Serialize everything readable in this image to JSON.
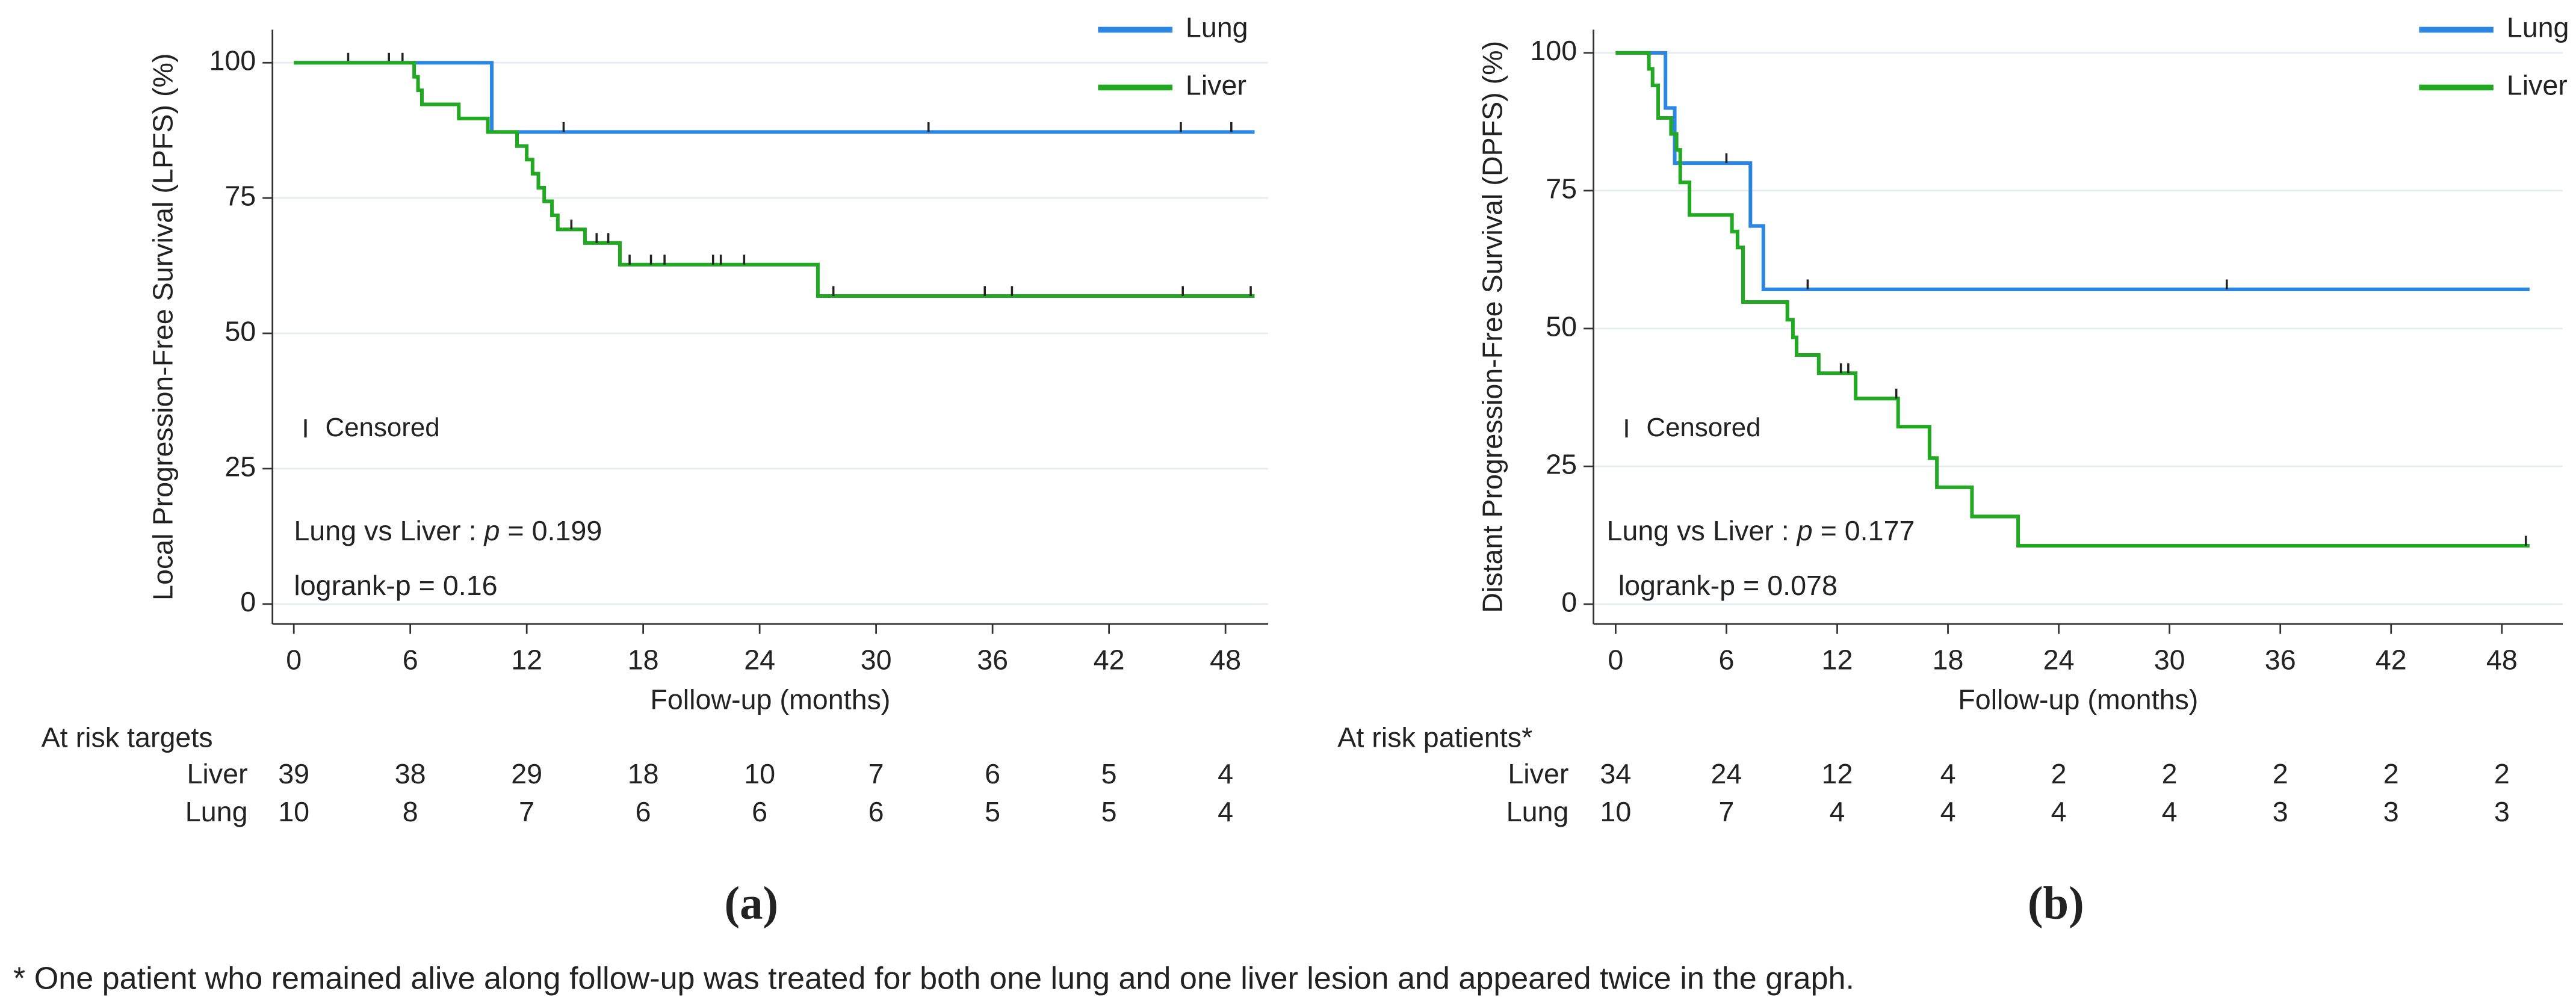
{
  "chart_data": [
    {
      "type": "step",
      "y_label": "Local Progression-Free Survival (LPFS) (%)",
      "x_label": "Follow-up (months)",
      "xlim": [
        -1.1,
        50.2
      ],
      "ylim": [
        -3.7,
        106.1
      ],
      "xticks": [
        0,
        6,
        12,
        18,
        24,
        30,
        36,
        42,
        48
      ],
      "yticks": [
        0,
        25,
        50,
        75,
        100
      ],
      "grid": true,
      "series": [
        {
          "name": "Lung",
          "color": "#2a86e0",
          "x": [
            0,
            10.2,
            49.5
          ],
          "values": [
            100,
            87.2,
            87.2
          ],
          "censored": [
            {
              "x": 2.8,
              "y": 100
            },
            {
              "x": 4.9,
              "y": 100
            },
            {
              "x": 5.6,
              "y": 100
            },
            {
              "x": 13.9,
              "y": 87.2
            },
            {
              "x": 32.7,
              "y": 87.2
            },
            {
              "x": 45.7,
              "y": 87.2
            },
            {
              "x": 48.3,
              "y": 87.2
            }
          ]
        },
        {
          "name": "Liver",
          "color": "#22a822",
          "x": [
            0,
            6.2,
            6.4,
            6.6,
            8.5,
            10,
            11.5,
            12,
            12.3,
            12.6,
            12.9,
            13.3,
            13.6,
            15,
            16.8,
            27,
            49.5
          ],
          "values": [
            100,
            97.4,
            94.9,
            92.3,
            89.7,
            87.2,
            84.6,
            82.1,
            79.5,
            76.9,
            74.4,
            71.8,
            69.2,
            66.7,
            62.7,
            56.9,
            56.9
          ],
          "censored": [
            {
              "x": 14.3,
              "y": 69.2
            },
            {
              "x": 15.6,
              "y": 66.7
            },
            {
              "x": 16.2,
              "y": 66.7
            },
            {
              "x": 17.3,
              "y": 62.7
            },
            {
              "x": 18.4,
              "y": 62.7
            },
            {
              "x": 19.1,
              "y": 62.7
            },
            {
              "x": 21.6,
              "y": 62.7
            },
            {
              "x": 22.0,
              "y": 62.7
            },
            {
              "x": 23.2,
              "y": 62.7
            },
            {
              "x": 27.8,
              "y": 56.9
            },
            {
              "x": 35.6,
              "y": 56.9
            },
            {
              "x": 37.0,
              "y": 56.9
            },
            {
              "x": 45.8,
              "y": 56.9
            },
            {
              "x": 49.3,
              "y": 56.9
            }
          ]
        }
      ],
      "censored_label": "Censored",
      "comparison": {
        "prefix": "Lung vs Liver : ",
        "symbol": "p",
        "suffix": " = 0.199"
      },
      "logrank": "logrank-p = 0.16",
      "risk_table": {
        "title": "At risk targets",
        "rows": [
          {
            "name": "Liver",
            "values": [
              39,
              38,
              29,
              18,
              10,
              7,
              6,
              5,
              4
            ]
          },
          {
            "name": "Lung",
            "values": [
              10,
              8,
              7,
              6,
              6,
              6,
              5,
              5,
              4
            ]
          }
        ]
      },
      "panel_label": "(a)"
    },
    {
      "type": "step",
      "y_label": "Distant Progression-Free Survival (DPFS) (%)",
      "x_label": "Follow-up (months)",
      "xlim": [
        -1.2,
        51.3
      ],
      "ylim": [
        -3.6,
        104.2
      ],
      "xticks": [
        0,
        6,
        12,
        18,
        24,
        30,
        36,
        42,
        48
      ],
      "yticks": [
        0,
        25,
        50,
        75,
        100
      ],
      "grid": true,
      "series": [
        {
          "name": "Lung",
          "color": "#2a86e0",
          "x": [
            0,
            2.7,
            3.2,
            7.3,
            8,
            49.5
          ],
          "values": [
            100,
            90,
            80,
            68.6,
            57.1,
            57.1
          ],
          "censored": [
            {
              "x": 6.0,
              "y": 80
            },
            {
              "x": 10.4,
              "y": 57.1
            },
            {
              "x": 33.1,
              "y": 57.1
            }
          ]
        },
        {
          "name": "Liver",
          "color": "#22a822",
          "x": [
            0,
            1.8,
            2,
            2.3,
            3,
            3.3,
            3.5,
            4,
            6.3,
            6.6,
            6.9,
            9.3,
            9.6,
            9.8,
            11,
            13,
            15.3,
            17,
            17.4,
            19.3,
            21.8,
            49.5
          ],
          "values": [
            100,
            97.1,
            94.1,
            88.2,
            85.3,
            82.4,
            76.5,
            70.6,
            67.6,
            64.7,
            54.8,
            51.6,
            48.4,
            45.2,
            41.9,
            37.3,
            32.2,
            26.5,
            21.2,
            15.9,
            10.6,
            10.6
          ],
          "censored": [
            {
              "x": 12.2,
              "y": 41.9
            },
            {
              "x": 12.6,
              "y": 41.9
            },
            {
              "x": 15.2,
              "y": 37.3
            },
            {
              "x": 49.3,
              "y": 10.6
            }
          ]
        }
      ],
      "censored_label": "Censored",
      "comparison": {
        "prefix": "Lung vs Liver : ",
        "symbol": "p",
        "suffix": " = 0.177"
      },
      "logrank": "logrank-p = 0.078",
      "risk_table": {
        "title": "At risk patients*",
        "rows": [
          {
            "name": "Liver",
            "values": [
              34,
              24,
              12,
              4,
              2,
              2,
              2,
              2,
              2
            ]
          },
          {
            "name": "Lung",
            "values": [
              10,
              7,
              4,
              4,
              4,
              4,
              3,
              3,
              3
            ]
          }
        ]
      },
      "panel_label": "(b)"
    }
  ],
  "footnote": "* One patient who remained alive along follow-up was treated for both one lung and one liver lesion and appeared twice in the graph."
}
